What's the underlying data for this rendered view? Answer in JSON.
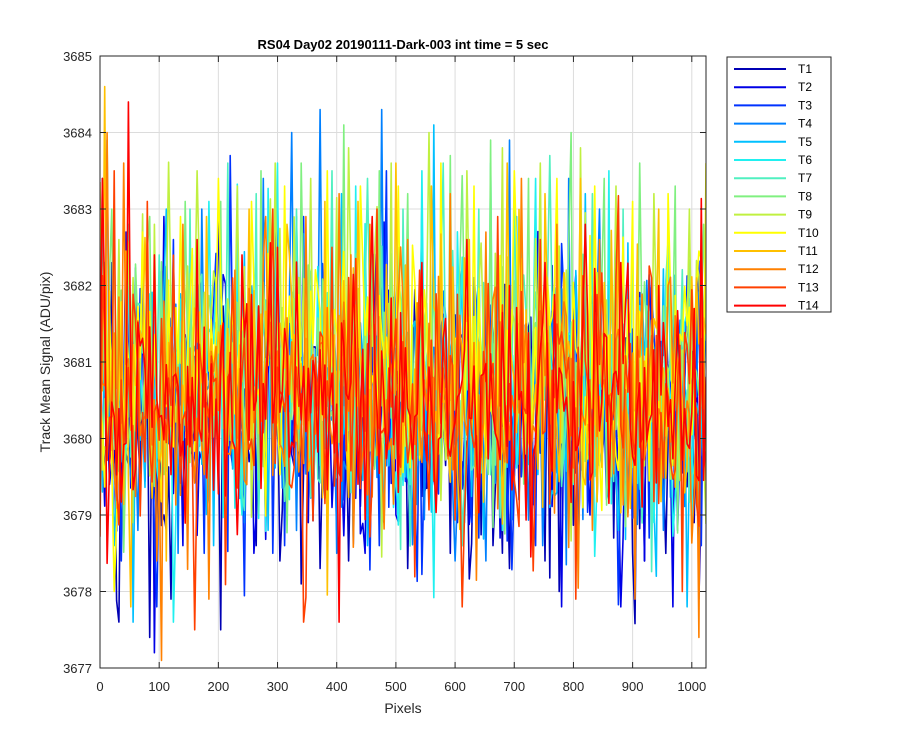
{
  "chart_data": {
    "type": "line",
    "title": "RS04 Day02 20190111-Dark-003 int time = 5 sec",
    "xlabel": "Pixels",
    "ylabel": "Track Mean Signal (ADU/pix)",
    "xlim": [
      0,
      1024
    ],
    "ylim": [
      3677,
      3685
    ],
    "xticks": [
      0,
      100,
      200,
      300,
      400,
      500,
      600,
      700,
      800,
      900,
      1000
    ],
    "yticks": [
      3677,
      3678,
      3679,
      3680,
      3681,
      3682,
      3683,
      3684,
      3685
    ],
    "grid": true,
    "legend_position": "outside-top-right",
    "x_step": 4,
    "series": [
      {
        "name": "T1",
        "color": "#0000B4",
        "mean": 3680.4,
        "std": 0.85,
        "highlights": [
          [
            20,
            3682.3
          ],
          [
            30,
            3677.6
          ],
          [
            70,
            3682.6
          ],
          [
            82,
            3677.4
          ],
          [
            118,
            3677.9
          ],
          [
            150,
            3682.2
          ],
          [
            205,
            3677.5
          ],
          [
            265,
            3678.6
          ],
          [
            305,
            3678.4
          ],
          [
            340,
            3678.1
          ],
          [
            372,
            3678.3
          ],
          [
            420,
            3678.4
          ],
          [
            478,
            3678.9
          ],
          [
            520,
            3678.3
          ],
          [
            590,
            3678.5
          ],
          [
            664,
            3678.6
          ],
          [
            692,
            3678.3
          ],
          [
            750,
            3678.4
          ],
          [
            776,
            3678.0
          ],
          [
            866,
            3678.7
          ],
          [
            900,
            3678.5
          ],
          [
            918,
            3678.4
          ],
          [
            954,
            3678.5
          ],
          [
            1004,
            3678.9
          ]
        ]
      },
      {
        "name": "T2",
        "color": "#0000E6",
        "mean": 3680.45,
        "std": 0.85,
        "highlights": [
          [
            15,
            3679.4
          ],
          [
            45,
            3682.7
          ],
          [
            92,
            3677.2
          ],
          [
            108,
            3682.9
          ],
          [
            140,
            3678.6
          ],
          [
            200,
            3683.0
          ],
          [
            258,
            3678.5
          ],
          [
            300,
            3683.2
          ],
          [
            352,
            3678.9
          ],
          [
            390,
            3679.1
          ],
          [
            448,
            3678.5
          ],
          [
            500,
            3679.0
          ],
          [
            560,
            3679.3
          ],
          [
            603,
            3678.9
          ],
          [
            676,
            3678.7
          ],
          [
            720,
            3679.3
          ],
          [
            778,
            3677.8
          ],
          [
            826,
            3679.0
          ],
          [
            878,
            3677.8
          ],
          [
            920,
            3678.4
          ],
          [
            966,
            3677.8
          ],
          [
            1010,
            3677.9
          ]
        ]
      },
      {
        "name": "T3",
        "color": "#0033FF",
        "mean": 3680.45,
        "std": 0.85,
        "highlights": [
          [
            5,
            3683.4
          ],
          [
            35,
            3678.4
          ],
          [
            97,
            3677.8
          ],
          [
            125,
            3682.6
          ],
          [
            175,
            3678.5
          ],
          [
            221,
            3683.7
          ],
          [
            290,
            3678.5
          ],
          [
            313,
            3678.6
          ],
          [
            345,
            3682.9
          ],
          [
            398,
            3678.8
          ],
          [
            470,
            3678.6
          ],
          [
            484,
            3683.5
          ],
          [
            532,
            3679.4
          ],
          [
            640,
            3678.7
          ],
          [
            712,
            3679.5
          ],
          [
            735,
            3678.6
          ],
          [
            806,
            3678.6
          ],
          [
            856,
            3679.2
          ],
          [
            928,
            3678.7
          ],
          [
            975,
            3678.8
          ],
          [
            1016,
            3678.6
          ]
        ]
      },
      {
        "name": "T4",
        "color": "#0080FF",
        "mean": 3680.55,
        "std": 0.85,
        "highlights": [
          [
            10,
            3683.9
          ],
          [
            62,
            3678.8
          ],
          [
            132,
            3678.5
          ],
          [
            172,
            3683.0
          ],
          [
            245,
            3678.9
          ],
          [
            275,
            3683.4
          ],
          [
            322,
            3684.0
          ],
          [
            370,
            3684.3
          ],
          [
            398,
            3678.5
          ],
          [
            475,
            3684.3
          ],
          [
            545,
            3683.1
          ],
          [
            598,
            3678.4
          ],
          [
            650,
            3678.4
          ],
          [
            690,
            3683.9
          ],
          [
            748,
            3678.6
          ],
          [
            790,
            3683.4
          ],
          [
            842,
            3683.0
          ],
          [
            890,
            3679.1
          ],
          [
            950,
            3678.8
          ],
          [
            1000,
            3678.9
          ]
        ]
      },
      {
        "name": "T5",
        "color": "#00C0FF",
        "mean": 3680.55,
        "std": 0.85,
        "highlights": [
          [
            2,
            3679.3
          ],
          [
            25,
            3678.6
          ],
          [
            55,
            3677.6
          ],
          [
            112,
            3683.0
          ],
          [
            190,
            3678.6
          ],
          [
            232,
            3682.7
          ],
          [
            283,
            3678.8
          ],
          [
            330,
            3682.9
          ],
          [
            408,
            3683.2
          ],
          [
            450,
            3678.6
          ],
          [
            515,
            3679.5
          ],
          [
            562,
            3684.1
          ],
          [
            615,
            3678.9
          ],
          [
            705,
            3682.9
          ],
          [
            760,
            3679.1
          ],
          [
            820,
            3683.2
          ],
          [
            876,
            3678.8
          ],
          [
            940,
            3678.2
          ],
          [
            992,
            3677.8
          ]
        ]
      },
      {
        "name": "T6",
        "color": "#20F0F0",
        "mean": 3680.6,
        "std": 0.85,
        "highlights": [
          [
            8,
            3682.3
          ],
          [
            40,
            3679.0
          ],
          [
            125,
            3677.6
          ],
          [
            185,
            3683.1
          ],
          [
            240,
            3679.0
          ],
          [
            300,
            3683.6
          ],
          [
            360,
            3679.2
          ],
          [
            430,
            3683.3
          ],
          [
            494,
            3679.1
          ],
          [
            545,
            3683.5
          ],
          [
            600,
            3679.3
          ],
          [
            660,
            3683.6
          ],
          [
            734,
            3683.4
          ],
          [
            800,
            3679.4
          ],
          [
            860,
            3683.5
          ],
          [
            935,
            3678.9
          ],
          [
            1000,
            3678.8
          ]
        ]
      },
      {
        "name": "T7",
        "color": "#50F0C0",
        "mean": 3680.65,
        "std": 0.85,
        "highlights": [
          [
            5,
            3682.0
          ],
          [
            48,
            3682.8
          ],
          [
            100,
            3682.4
          ],
          [
            153,
            3683.0
          ],
          [
            215,
            3683.6
          ],
          [
            263,
            3683.2
          ],
          [
            333,
            3683.0
          ],
          [
            393,
            3683.5
          ],
          [
            450,
            3683.4
          ],
          [
            510,
            3683.0
          ],
          [
            580,
            3683.6
          ],
          [
            640,
            3683.0
          ],
          [
            700,
            3683.2
          ],
          [
            760,
            3683.7
          ],
          [
            830,
            3683.2
          ],
          [
            885,
            3683.0
          ],
          [
            960,
            3682.6
          ],
          [
            1015,
            3682.2
          ]
        ]
      },
      {
        "name": "T8",
        "color": "#80F080",
        "mean": 3680.8,
        "std": 0.85,
        "highlights": [
          [
            18,
            3683.0
          ],
          [
            85,
            3682.9
          ],
          [
            145,
            3683.1
          ],
          [
            205,
            3683.1
          ],
          [
            270,
            3683.5
          ],
          [
            340,
            3683.6
          ],
          [
            410,
            3684.1
          ],
          [
            470,
            3683.5
          ],
          [
            520,
            3683.2
          ],
          [
            590,
            3683.7
          ],
          [
            660,
            3683.9
          ],
          [
            722,
            3683.4
          ],
          [
            795,
            3684.0
          ],
          [
            850,
            3683.4
          ],
          [
            912,
            3683.6
          ],
          [
            970,
            3683.3
          ],
          [
            1020,
            3682.8
          ]
        ]
      },
      {
        "name": "T9",
        "color": "#C0F040",
        "mean": 3680.9,
        "std": 0.85,
        "highlights": [
          [
            30,
            3682.6
          ],
          [
            90,
            3682.8
          ],
          [
            165,
            3683.5
          ],
          [
            232,
            3683.3
          ],
          [
            295,
            3683.6
          ],
          [
            356,
            3683.4
          ],
          [
            418,
            3683.8
          ],
          [
            490,
            3683.6
          ],
          [
            556,
            3684.0
          ],
          [
            620,
            3683.5
          ],
          [
            680,
            3683.8
          ],
          [
            745,
            3683.6
          ],
          [
            810,
            3683.8
          ],
          [
            870,
            3683.3
          ],
          [
            935,
            3683.2
          ],
          [
            995,
            3683.0
          ]
        ]
      },
      {
        "name": "T10",
        "color": "#FFFF00",
        "mean": 3680.85,
        "std": 0.85,
        "highlights": [
          [
            22,
            3678.0
          ],
          [
            70,
            3682.7
          ],
          [
            135,
            3682.9
          ],
          [
            200,
            3683.4
          ],
          [
            255,
            3683.1
          ],
          [
            310,
            3683.3
          ],
          [
            385,
            3683.5
          ],
          [
            440,
            3683.3
          ],
          [
            505,
            3683.3
          ],
          [
            575,
            3683.6
          ],
          [
            630,
            3683.3
          ],
          [
            700,
            3683.5
          ],
          [
            770,
            3683.4
          ],
          [
            835,
            3683.3
          ],
          [
            898,
            3683.1
          ],
          [
            960,
            3683.2
          ],
          [
            1022,
            3683.6
          ]
        ]
      },
      {
        "name": "T11",
        "color": "#FFC000",
        "mean": 3680.6,
        "std": 0.85,
        "highlights": [
          [
            8,
            3684.6
          ],
          [
            52,
            3677.8
          ],
          [
            112,
            3678.4
          ],
          [
            178,
            3682.9
          ],
          [
            250,
            3683.0
          ],
          [
            315,
            3682.8
          ],
          [
            378,
            3683.1
          ],
          [
            435,
            3683.1
          ],
          [
            498,
            3683.6
          ],
          [
            560,
            3683.3
          ],
          [
            625,
            3682.6
          ],
          [
            688,
            3683.6
          ],
          [
            752,
            3683.2
          ],
          [
            810,
            3683.4
          ],
          [
            875,
            3682.8
          ],
          [
            945,
            3683.0
          ],
          [
            1008,
            3682.1
          ]
        ]
      },
      {
        "name": "T12",
        "color": "#FF8000",
        "mean": 3680.45,
        "std": 0.85,
        "highlights": [
          [
            12,
            3684.0
          ],
          [
            40,
            3683.6
          ],
          [
            95,
            3678.4
          ],
          [
            105,
            3677.1
          ],
          [
            140,
            3682.8
          ],
          [
            182,
            3677.9
          ],
          [
            228,
            3682.2
          ],
          [
            280,
            3682.9
          ],
          [
            348,
            3682.9
          ],
          [
            402,
            3683.2
          ],
          [
            455,
            3682.8
          ],
          [
            520,
            3682.6
          ],
          [
            590,
            3683.2
          ],
          [
            652,
            3682.7
          ],
          [
            710,
            3683.4
          ],
          [
            770,
            3682.8
          ],
          [
            843,
            3682.6
          ],
          [
            905,
            3677.9
          ],
          [
            960,
            3682.0
          ],
          [
            1013,
            3677.4
          ]
        ]
      },
      {
        "name": "T13",
        "color": "#FF4000",
        "mean": 3680.4,
        "std": 0.85,
        "highlights": [
          [
            25,
            3683.5
          ],
          [
            80,
            3683.1
          ],
          [
            160,
            3677.5
          ],
          [
            225,
            3682.1
          ],
          [
            290,
            3683.0
          ],
          [
            342,
            3677.6
          ],
          [
            390,
            3682.5
          ],
          [
            468,
            3683.0
          ],
          [
            538,
            3682.2
          ],
          [
            610,
            3677.8
          ],
          [
            672,
            3682.9
          ],
          [
            742,
            3682.6
          ],
          [
            804,
            3677.9
          ],
          [
            870,
            3682.1
          ],
          [
            930,
            3682.1
          ],
          [
            985,
            3678.0
          ]
        ]
      },
      {
        "name": "T14",
        "color": "#FF0000",
        "mean": 3680.35,
        "std": 0.8,
        "highlights": [
          [
            3,
            3683.4
          ],
          [
            48,
            3684.4
          ],
          [
            92,
            3682.4
          ],
          [
            162,
            3682.6
          ],
          [
            240,
            3682.4
          ],
          [
            300,
            3682.5
          ],
          [
            405,
            3677.6
          ],
          [
            460,
            3682.9
          ],
          [
            542,
            3682.3
          ],
          [
            620,
            3682.6
          ],
          [
            690,
            3682.0
          ],
          [
            750,
            3682.3
          ],
          [
            820,
            3682.8
          ],
          [
            880,
            3682.3
          ],
          [
            945,
            3682.0
          ],
          [
            1005,
            3681.7
          ]
        ]
      }
    ]
  }
}
